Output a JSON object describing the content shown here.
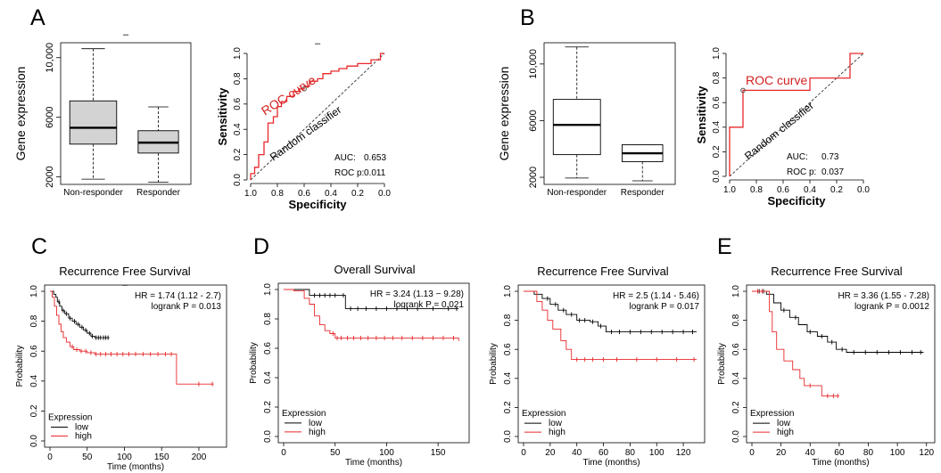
{
  "panel_letters": {
    "A": "A",
    "B": "B",
    "C": "C",
    "D": "D",
    "E": "E"
  },
  "colors": {
    "red": "#e8282b",
    "black": "#000000",
    "box_fill_A": "#d3d3d3",
    "box_fill_B": "#ffffff",
    "roc_red": "#d42020"
  },
  "chart_data": [
    {
      "id": "A_box",
      "type": "box",
      "ylabel": "Gene expression",
      "categories": [
        "Non-responder",
        "Responder"
      ],
      "yticks": [
        "2000",
        "6000",
        "10,000"
      ],
      "ylim": [
        1500,
        11000
      ],
      "boxes": [
        {
          "min": 1850,
          "q1": 4200,
          "median": 5300,
          "q3": 7100,
          "max": 10600
        },
        {
          "min": 1650,
          "q1": 3600,
          "median": 4300,
          "q3": 5100,
          "max": 6700
        }
      ],
      "top_label": "–"
    },
    {
      "id": "A_roc",
      "type": "line",
      "xlabel": "Specificity",
      "ylabel": "Sensitivity",
      "xticks": [
        "1.0",
        "0.8",
        "0.6",
        "0.4",
        "0.2",
        "0.0"
      ],
      "yticks": [
        "0.0",
        "0.2",
        "0.4",
        "0.6",
        "0.8",
        "1.0"
      ],
      "curve_label": "ROC curve",
      "diagonal_label": "Random classifier",
      "auc_label": "AUC:",
      "auc_value": "0.653",
      "rocp_label": "ROC p:",
      "rocp_value": "0.011",
      "top_label": "–",
      "marked_point": [
        0.6,
        0.72
      ],
      "points": [
        [
          1.0,
          0.0
        ],
        [
          1.0,
          0.05
        ],
        [
          0.97,
          0.05
        ],
        [
          0.97,
          0.1
        ],
        [
          0.94,
          0.1
        ],
        [
          0.94,
          0.2
        ],
        [
          0.9,
          0.2
        ],
        [
          0.9,
          0.3
        ],
        [
          0.87,
          0.3
        ],
        [
          0.87,
          0.45
        ],
        [
          0.83,
          0.45
        ],
        [
          0.83,
          0.5
        ],
        [
          0.8,
          0.5
        ],
        [
          0.8,
          0.58
        ],
        [
          0.77,
          0.58
        ],
        [
          0.77,
          0.62
        ],
        [
          0.73,
          0.62
        ],
        [
          0.73,
          0.66
        ],
        [
          0.68,
          0.66
        ],
        [
          0.68,
          0.7
        ],
        [
          0.64,
          0.7
        ],
        [
          0.64,
          0.72
        ],
        [
          0.6,
          0.72
        ],
        [
          0.6,
          0.74
        ],
        [
          0.56,
          0.74
        ],
        [
          0.56,
          0.78
        ],
        [
          0.5,
          0.78
        ],
        [
          0.5,
          0.8
        ],
        [
          0.46,
          0.8
        ],
        [
          0.46,
          0.84
        ],
        [
          0.4,
          0.84
        ],
        [
          0.4,
          0.86
        ],
        [
          0.34,
          0.86
        ],
        [
          0.34,
          0.88
        ],
        [
          0.28,
          0.88
        ],
        [
          0.28,
          0.9
        ],
        [
          0.2,
          0.9
        ],
        [
          0.2,
          0.92
        ],
        [
          0.1,
          0.92
        ],
        [
          0.1,
          0.95
        ],
        [
          0.03,
          0.95
        ],
        [
          0.03,
          1.0
        ],
        [
          0.0,
          1.0
        ]
      ]
    },
    {
      "id": "B_box",
      "type": "box",
      "ylabel": "Gene expression",
      "categories": [
        "Non-responder",
        "Responder"
      ],
      "yticks": [
        "2000",
        "6000",
        "10,000"
      ],
      "ylim": [
        1500,
        11500
      ],
      "boxes": [
        {
          "min": 1950,
          "q1": 3600,
          "median": 5700,
          "q3": 7500,
          "max": 11200
        },
        {
          "min": 1750,
          "q1": 3100,
          "median": 3700,
          "q3": 4300,
          "max": 4300
        }
      ]
    },
    {
      "id": "B_roc",
      "type": "line",
      "xlabel": "Specificity",
      "ylabel": "Sensitivity",
      "xticks": [
        "1.0",
        "0.8",
        "0.6",
        "0.4",
        "0.2",
        "0.0"
      ],
      "yticks": [
        "0.0",
        "0.2",
        "0.4",
        "0.6",
        "0.8",
        "1.0"
      ],
      "curve_label": "ROC curve",
      "diagonal_label": "Random classifier",
      "auc_label": "AUC:",
      "auc_value": "0.73",
      "rocp_label": "ROC p:",
      "rocp_value": "0.037",
      "marked_point": [
        0.9,
        0.7
      ],
      "points": [
        [
          1.0,
          0.0
        ],
        [
          1.0,
          0.4
        ],
        [
          0.9,
          0.4
        ],
        [
          0.9,
          0.7
        ],
        [
          0.4,
          0.7
        ],
        [
          0.4,
          0.8
        ],
        [
          0.1,
          0.8
        ],
        [
          0.1,
          1.0
        ],
        [
          0.0,
          1.0
        ]
      ]
    },
    {
      "id": "C_km",
      "type": "line",
      "title": "Recurrence Free Survival",
      "subtitle": "–",
      "xlabel": "Time (months)",
      "ylabel": "Probability",
      "xticks": [
        0,
        50,
        100,
        150,
        200
      ],
      "xmax": 230,
      "yticks": [
        "0.0",
        "0.2",
        "0.4",
        "0.6",
        "0.8",
        "1.0"
      ],
      "hr": "HR = 1.74 (1.12 - 2.7)",
      "logrank": "logrank P = 0.013",
      "legend_title": "Expression",
      "legend_items": [
        "low",
        "high"
      ],
      "series": [
        {
          "name": "low",
          "color": "#000000",
          "points": [
            [
              0,
              1.0
            ],
            [
              5,
              0.98
            ],
            [
              8,
              0.96
            ],
            [
              10,
              0.93
            ],
            [
              13,
              0.9
            ],
            [
              16,
              0.87
            ],
            [
              20,
              0.85
            ],
            [
              25,
              0.82
            ],
            [
              30,
              0.8
            ],
            [
              35,
              0.78
            ],
            [
              40,
              0.76
            ],
            [
              45,
              0.74
            ],
            [
              50,
              0.72
            ],
            [
              55,
              0.7
            ],
            [
              60,
              0.69
            ],
            [
              80,
              0.69
            ]
          ],
          "censor": [
            12,
            18,
            22,
            27,
            33,
            38,
            43,
            48,
            53,
            57,
            62,
            65,
            68,
            72,
            75,
            78
          ]
        },
        {
          "name": "high",
          "color": "#e8282b",
          "points": [
            [
              0,
              1.0
            ],
            [
              3,
              0.96
            ],
            [
              6,
              0.9
            ],
            [
              9,
              0.84
            ],
            [
              12,
              0.78
            ],
            [
              15,
              0.73
            ],
            [
              18,
              0.69
            ],
            [
              22,
              0.66
            ],
            [
              27,
              0.63
            ],
            [
              32,
              0.61
            ],
            [
              40,
              0.6
            ],
            [
              50,
              0.59
            ],
            [
              60,
              0.58
            ],
            [
              170,
              0.58
            ],
            [
              170,
              0.38
            ],
            [
              220,
              0.38
            ]
          ],
          "censor": [
            30,
            36,
            42,
            48,
            55,
            62,
            68,
            75,
            82,
            90,
            98,
            106,
            115,
            125,
            135,
            145,
            155,
            163,
            200,
            218
          ]
        }
      ]
    },
    {
      "id": "D1_km",
      "type": "line",
      "title": "Overall  Survival",
      "xlabel": "Time (months)",
      "ylabel": "Probability",
      "xticks": [
        0,
        50,
        100,
        150
      ],
      "xmax": 175,
      "yticks": [
        "0.0",
        "0.2",
        "0.4",
        "0.6",
        "0.8",
        "1.0"
      ],
      "hr": "HR = 3.24 (1.13 − 9.28)",
      "logrank": "logrank P = 0.021",
      "legend_title": "Expression",
      "legend_items": [
        "low",
        "high"
      ],
      "series": [
        {
          "name": "low",
          "color": "#000000",
          "points": [
            [
              0,
              1.0
            ],
            [
              20,
              1.0
            ],
            [
              25,
              0.96
            ],
            [
              55,
              0.96
            ],
            [
              60,
              0.87
            ],
            [
              170,
              0.87
            ]
          ],
          "censor": [
            30,
            35,
            40,
            45,
            50,
            58,
            65,
            72,
            80,
            90,
            100,
            110,
            120,
            130,
            145,
            160,
            168
          ]
        },
        {
          "name": "high",
          "color": "#e8282b",
          "points": [
            [
              0,
              1.0
            ],
            [
              10,
              0.99
            ],
            [
              20,
              0.94
            ],
            [
              25,
              0.9
            ],
            [
              30,
              0.82
            ],
            [
              35,
              0.76
            ],
            [
              40,
              0.72
            ],
            [
              45,
              0.7
            ],
            [
              50,
              0.67
            ],
            [
              60,
              0.67
            ],
            [
              170,
              0.65
            ]
          ],
          "censor": [
            48,
            52,
            56,
            62,
            68,
            75,
            82,
            90,
            98,
            106,
            115,
            125,
            135,
            145,
            155,
            165
          ]
        }
      ]
    },
    {
      "id": "D2_km",
      "type": "line",
      "title": "Recurrence Free Survival",
      "xlabel": "Time (months)",
      "ylabel": "Probability",
      "xticks": [
        0,
        20,
        40,
        60,
        80,
        100,
        120
      ],
      "xmax": 132,
      "yticks": [
        "0.0",
        "0.2",
        "0.4",
        "0.6",
        "0.8",
        "1.0"
      ],
      "hr": "HR = 2.5 (1.14 - 5.46)",
      "logrank": "logrank P = 0.017",
      "legend_title": "Expression",
      "legend_items": [
        "low",
        "high"
      ],
      "series": [
        {
          "name": "low",
          "color": "#000000",
          "points": [
            [
              0,
              1.0
            ],
            [
              8,
              0.98
            ],
            [
              14,
              0.95
            ],
            [
              20,
              0.91
            ],
            [
              26,
              0.87
            ],
            [
              32,
              0.84
            ],
            [
              40,
              0.8
            ],
            [
              50,
              0.79
            ],
            [
              56,
              0.76
            ],
            [
              62,
              0.72
            ],
            [
              130,
              0.72
            ]
          ],
          "censor": [
            18,
            24,
            30,
            36,
            42,
            46,
            52,
            58,
            66,
            72,
            80,
            88,
            96,
            104,
            112,
            120,
            127
          ]
        },
        {
          "name": "high",
          "color": "#e8282b",
          "points": [
            [
              0,
              1.0
            ],
            [
              10,
              0.93
            ],
            [
              14,
              0.87
            ],
            [
              18,
              0.8
            ],
            [
              22,
              0.74
            ],
            [
              28,
              0.66
            ],
            [
              32,
              0.6
            ],
            [
              36,
              0.53
            ],
            [
              130,
              0.53
            ]
          ],
          "censor": [
            40,
            46,
            52,
            60,
            70,
            85,
            100,
            115,
            128
          ]
        }
      ]
    },
    {
      "id": "E_km",
      "type": "line",
      "title": "Recurrence Free Survival",
      "xlabel": "Time (months)",
      "ylabel": "Probability",
      "xticks": [
        0,
        20,
        40,
        60,
        80,
        100,
        120
      ],
      "xmax": 122,
      "yticks": [
        "0.0",
        "0.2",
        "0.4",
        "0.6",
        "0.8",
        "1.0"
      ],
      "hr": "HR = 3.36 (1.55 - 7.28)",
      "logrank": "logrank P = 0.0012",
      "legend_title": "Expression",
      "legend_items": [
        "low",
        "high"
      ],
      "series": [
        {
          "name": "low",
          "color": "#000000",
          "points": [
            [
              0,
              1.0
            ],
            [
              10,
              0.98
            ],
            [
              15,
              0.92
            ],
            [
              20,
              0.87
            ],
            [
              26,
              0.82
            ],
            [
              32,
              0.77
            ],
            [
              38,
              0.72
            ],
            [
              45,
              0.69
            ],
            [
              52,
              0.65
            ],
            [
              58,
              0.6
            ],
            [
              65,
              0.58
            ],
            [
              118,
              0.58
            ]
          ],
          "censor": [
            5,
            8,
            22,
            30,
            40,
            48,
            55,
            62,
            70,
            78,
            86,
            94,
            102,
            110,
            116
          ]
        },
        {
          "name": "high",
          "color": "#e8282b",
          "points": [
            [
              0,
              1.0
            ],
            [
              10,
              1.0
            ],
            [
              12,
              0.86
            ],
            [
              14,
              0.72
            ],
            [
              17,
              0.6
            ],
            [
              22,
              0.52
            ],
            [
              28,
              0.46
            ],
            [
              33,
              0.4
            ],
            [
              36,
              0.35
            ],
            [
              44,
              0.35
            ],
            [
              48,
              0.28
            ],
            [
              60,
              0.28
            ]
          ],
          "censor": [
            4,
            7,
            40,
            52,
            56,
            59
          ]
        }
      ]
    }
  ]
}
